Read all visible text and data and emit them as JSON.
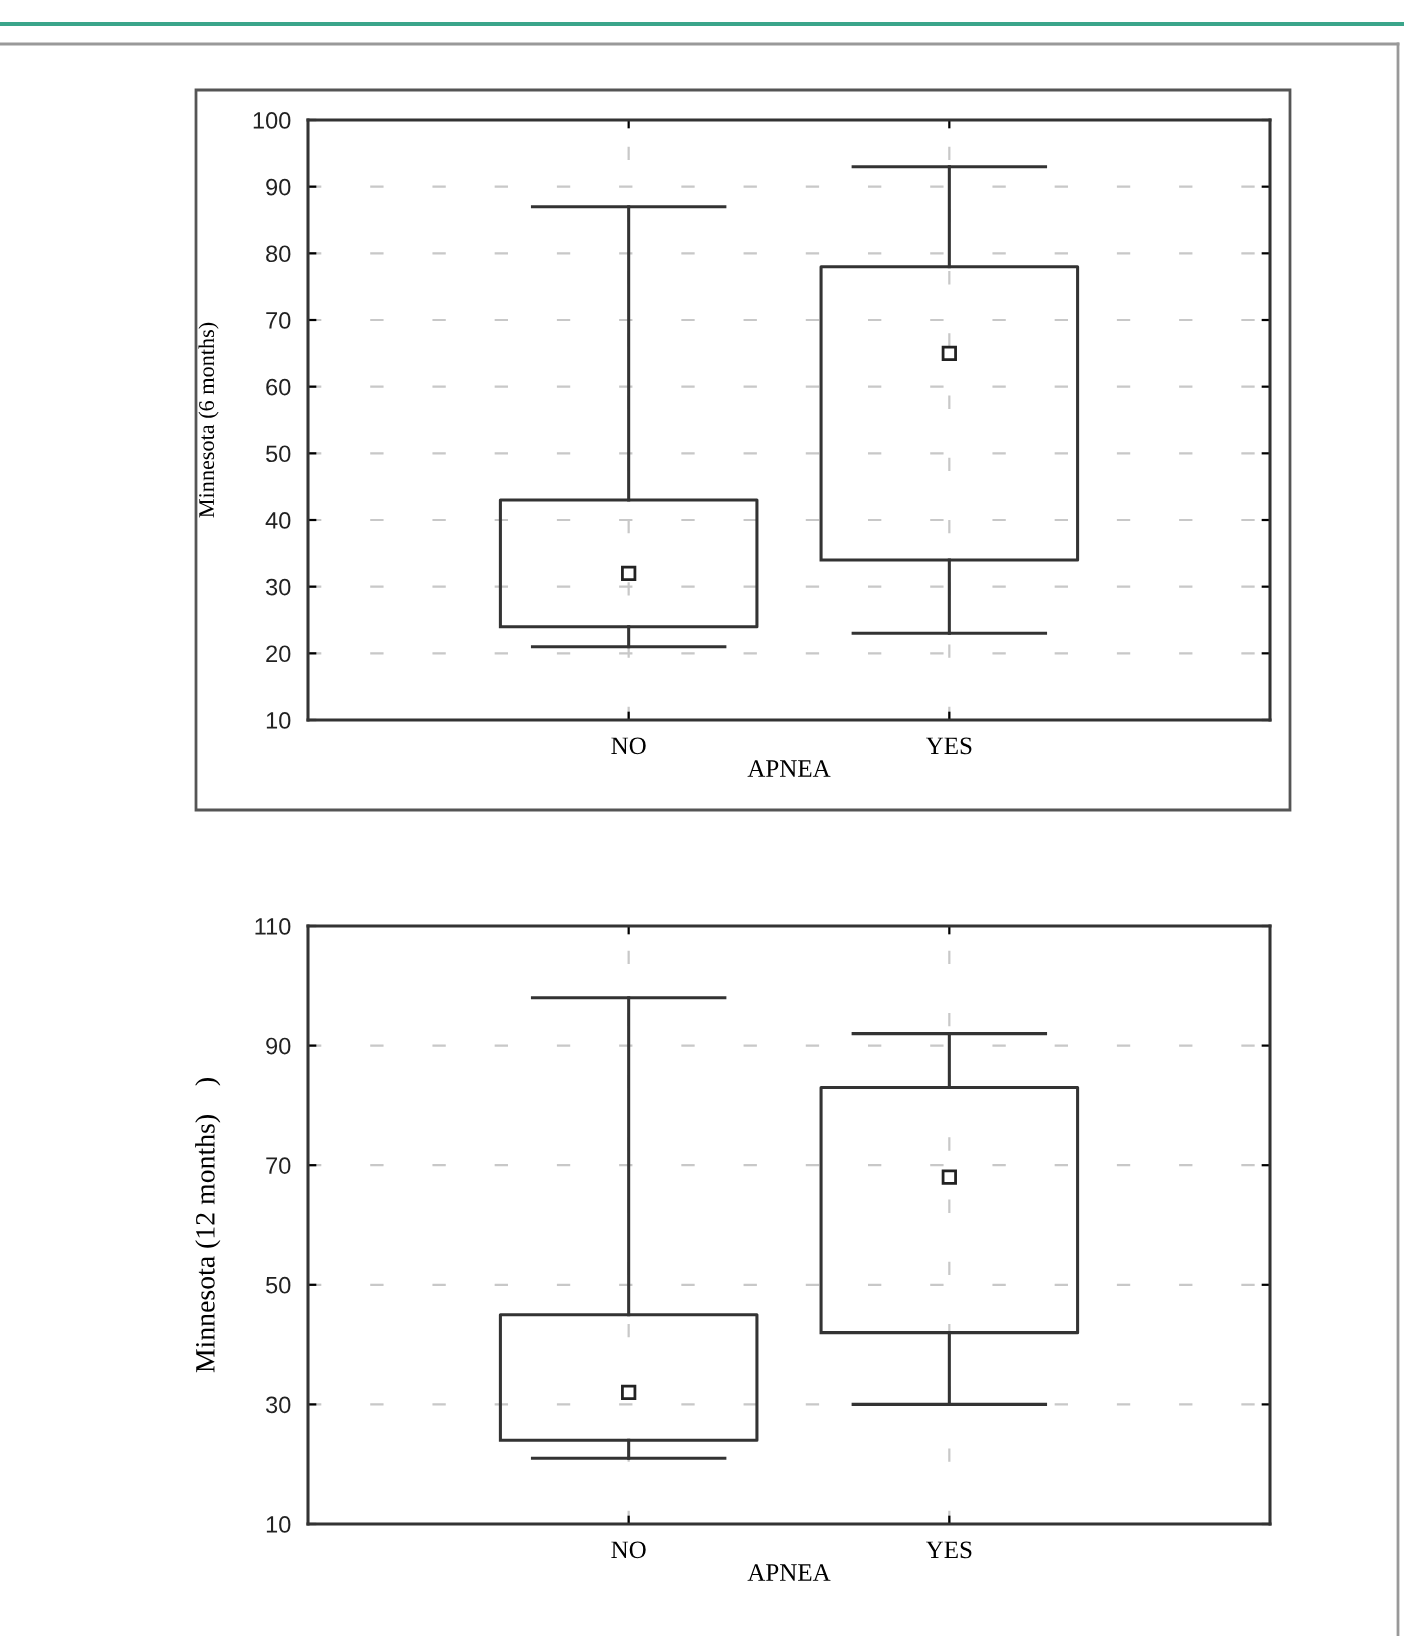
{
  "chart_data": [
    {
      "type": "box",
      "categories": [
        "NO",
        "YES"
      ],
      "xlabel": "APNEA",
      "ylabel": "Minnesota (6 months)",
      "ylim": [
        10,
        100
      ],
      "yticks": [
        10,
        20,
        30,
        40,
        50,
        60,
        70,
        80,
        90,
        100
      ],
      "grid": true,
      "boxes": [
        {
          "low": 21,
          "q1": 24,
          "median": 32,
          "q3": 43,
          "high": 87
        },
        {
          "low": 23,
          "q1": 34,
          "median": 65,
          "q3": 78,
          "high": 93
        }
      ]
    },
    {
      "type": "box",
      "categories": [
        "NO",
        "YES"
      ],
      "xlabel": "APNEA",
      "ylabel": "Minnesota (12 months)    )",
      "ylim": [
        10,
        110
      ],
      "yticks": [
        10,
        30,
        50,
        70,
        90,
        110
      ],
      "grid": true,
      "boxes": [
        {
          "low": 21,
          "q1": 24,
          "median": 32,
          "q3": 45,
          "high": 98
        },
        {
          "low": 30,
          "q1": 42,
          "median": 68,
          "q3": 83,
          "high": 92
        }
      ]
    }
  ]
}
